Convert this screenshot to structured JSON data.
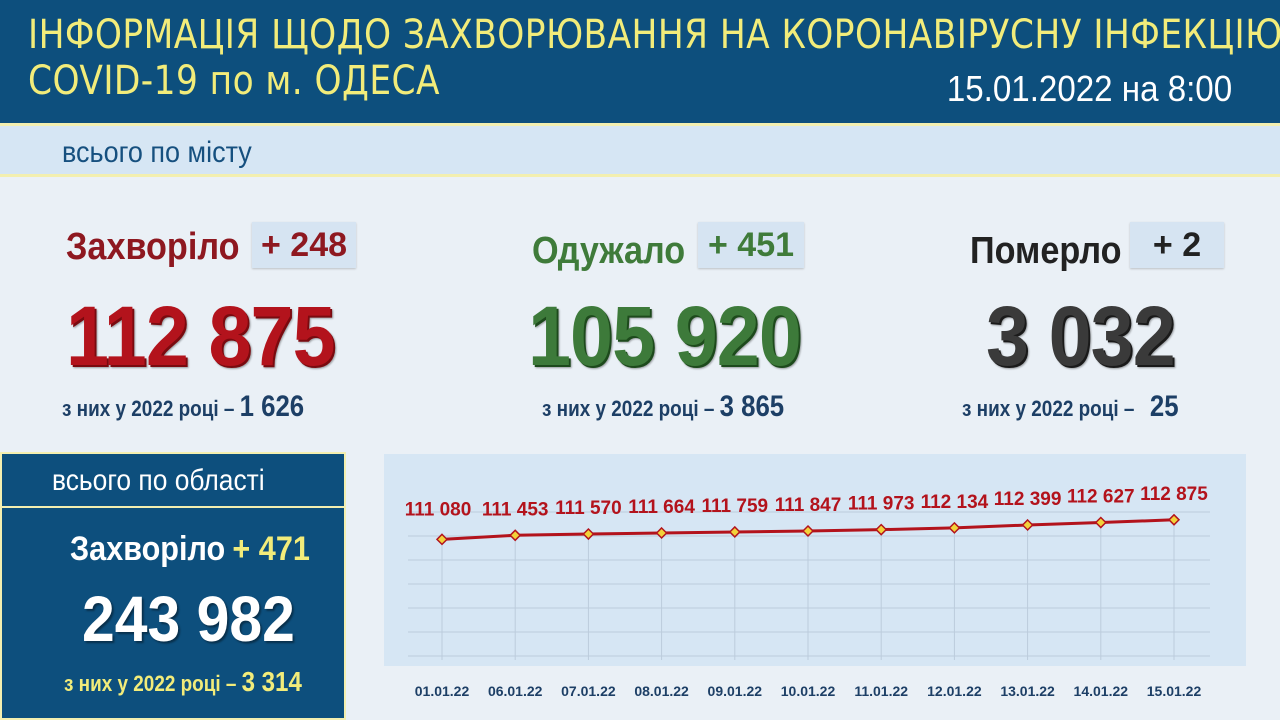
{
  "header": {
    "title_line1": "ІНФОРМАЦІЯ ЩОДО ЗАХВОРЮВАННЯ НА КОРОНАВІРУСНУ ІНФЕКЦІЮ",
    "title_line2": "COVID-19 по м. ОДЕСА",
    "date": "15.01.2022 на 8:00"
  },
  "city": {
    "label": "всього по місту",
    "sick": {
      "title": "Захворіло",
      "delta": "+ 248",
      "total": "112 875",
      "sub_label": "з них у 2022 році –",
      "sub_value": "1 626"
    },
    "recovered": {
      "title": "Одужало",
      "delta": "+ 451",
      "total": "105 920",
      "sub_label": "з них у 2022 році –",
      "sub_value": "3 865"
    },
    "died": {
      "title": "Померло",
      "delta": "+ 2",
      "total": "3 032",
      "sub_label": "з них у 2022 році –",
      "sub_value": "25"
    }
  },
  "region": {
    "label": "всього по області",
    "title": "Захворіло",
    "delta": "+ 471",
    "total": "243 982",
    "sub_label": "з них у 2022 році –",
    "sub_value": "3 314"
  },
  "colors": {
    "header_bg": "#0d4f7d",
    "header_title": "#f2ec7a",
    "sick": "#b3131c",
    "recovered": "#3d7a3a",
    "died": "#3a3a3a",
    "chart_line": "#b3131c",
    "chart_marker": "#f2d23a",
    "chart_bg": "#d6e6f4"
  },
  "chart_data": {
    "type": "line",
    "categories": [
      "01.01.22",
      "06.01.22",
      "07.01.22",
      "08.01.22",
      "09.01.22",
      "10.01.22",
      "11.01.22",
      "12.01.22",
      "13.01.22",
      "14.01.22",
      "15.01.22"
    ],
    "values": [
      111080,
      111453,
      111570,
      111664,
      111759,
      111847,
      111973,
      112134,
      112399,
      112627,
      112875
    ],
    "value_labels": [
      "111 080",
      "111 453",
      "111 570",
      "111 664",
      "111 759",
      "111 847",
      "111 973",
      "112 134",
      "112 399",
      "112 627",
      "112 875"
    ],
    "ylim": [
      100000,
      118000
    ],
    "grid": true
  }
}
